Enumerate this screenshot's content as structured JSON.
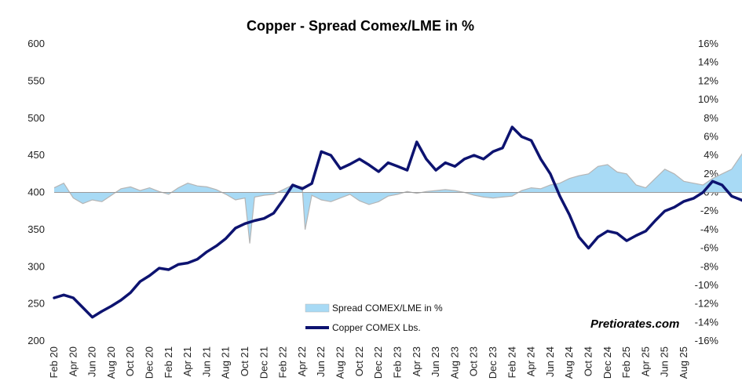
{
  "chart_data": {
    "type": "line",
    "title": "Copper - Spread Comex/LME in %",
    "watermark": "Pretiorates.com",
    "x_tick_labels": [
      "Feb 20",
      "Apr 20",
      "Jun 20",
      "Aug 20",
      "Oct 20",
      "Dec 20",
      "Feb 21",
      "Apr 21",
      "Jun 21",
      "Aug 21",
      "Oct 21",
      "Dec 21",
      "Feb 22",
      "Apr 22",
      "Jun 22",
      "Aug 22",
      "Oct 22",
      "Dec 22",
      "Feb 23",
      "Apr 23",
      "Jun 23",
      "Aug 23",
      "Oct 23",
      "Dec 23",
      "Feb 24",
      "Apr 24",
      "Jun 24",
      "Aug 24",
      "Oct 24",
      "Dec 24",
      "Feb 25",
      "Apr 25",
      "Jun 25",
      "Aug 25"
    ],
    "y_left": {
      "ticks": [
        200,
        250,
        300,
        350,
        400,
        450,
        500,
        550,
        600
      ],
      "ylim": [
        200,
        600
      ],
      "label": ""
    },
    "y_right": {
      "ticks": [
        "-16%",
        "-14%",
        "-12%",
        "-10%",
        "-8%",
        "-6%",
        "-4%",
        "-2%",
        "0%",
        "2%",
        "4%",
        "6%",
        "8%",
        "10%",
        "12%",
        "14%",
        "16%"
      ],
      "ylim": [
        -16,
        16
      ],
      "label": ""
    },
    "legend": {
      "placement": "bottom-center"
    },
    "series": [
      {
        "name": "Spread COMEX/LME in %",
        "kind": "area",
        "axis": "right",
        "color": "#a8daf5",
        "outline_color": "#b5b5b5",
        "points": [
          [
            0,
            0.5
          ],
          [
            1,
            1.0
          ],
          [
            2,
            -0.6
          ],
          [
            3,
            -1.2
          ],
          [
            4,
            -0.8
          ],
          [
            5,
            -1.0
          ],
          [
            6,
            -0.3
          ],
          [
            7,
            0.4
          ],
          [
            8,
            0.6
          ],
          [
            9,
            0.2
          ],
          [
            10,
            0.5
          ],
          [
            11,
            0.1
          ],
          [
            12,
            -0.2
          ],
          [
            13,
            0.5
          ],
          [
            14,
            1.0
          ],
          [
            15,
            0.7
          ],
          [
            16,
            0.6
          ],
          [
            17,
            0.3
          ],
          [
            18,
            -0.2
          ],
          [
            19,
            -0.8
          ],
          [
            20,
            -0.6
          ],
          [
            20.5,
            -5.5
          ],
          [
            21,
            -0.5
          ],
          [
            22,
            -0.3
          ],
          [
            23,
            -0.2
          ],
          [
            24,
            0.3
          ],
          [
            25,
            0.8
          ],
          [
            26,
            0.6
          ],
          [
            26.3,
            -4.0
          ],
          [
            27,
            -0.3
          ],
          [
            28,
            -0.8
          ],
          [
            29,
            -1.0
          ],
          [
            30,
            -0.6
          ],
          [
            31,
            -0.2
          ],
          [
            32,
            -0.9
          ],
          [
            33,
            -1.3
          ],
          [
            34,
            -1.0
          ],
          [
            35,
            -0.4
          ],
          [
            36,
            -0.2
          ],
          [
            37,
            0.1
          ],
          [
            38,
            -0.1
          ],
          [
            39,
            0.1
          ],
          [
            40,
            0.2
          ],
          [
            41,
            0.3
          ],
          [
            42,
            0.2
          ],
          [
            43,
            0.0
          ],
          [
            44,
            -0.3
          ],
          [
            45,
            -0.5
          ],
          [
            46,
            -0.6
          ],
          [
            47,
            -0.5
          ],
          [
            48,
            -0.4
          ],
          [
            49,
            0.2
          ],
          [
            50,
            0.5
          ],
          [
            51,
            0.4
          ],
          [
            52,
            0.8
          ],
          [
            53,
            1.0
          ],
          [
            54,
            1.5
          ],
          [
            55,
            1.8
          ],
          [
            56,
            2.0
          ],
          [
            57,
            2.8
          ],
          [
            58,
            3.0
          ],
          [
            59,
            2.2
          ],
          [
            60,
            2.0
          ],
          [
            61,
            0.8
          ],
          [
            62,
            0.5
          ],
          [
            63,
            1.5
          ],
          [
            64,
            2.5
          ],
          [
            65,
            2.0
          ],
          [
            66,
            1.2
          ],
          [
            67,
            1.0
          ],
          [
            68,
            0.8
          ],
          [
            69,
            1.5
          ],
          [
            70,
            2.0
          ],
          [
            71,
            2.5
          ],
          [
            72,
            4.0
          ],
          [
            73,
            5.5
          ],
          [
            74,
            7.0
          ],
          [
            75,
            9.0
          ],
          [
            76,
            11.0
          ],
          [
            77,
            13.0
          ],
          [
            78,
            15.5
          ],
          [
            79,
            14.0
          ],
          [
            80,
            12.0
          ],
          [
            81,
            10.5
          ],
          [
            82,
            9.0
          ],
          [
            83,
            9.5
          ],
          [
            84,
            10.0
          ],
          [
            85,
            9.5
          ],
          [
            86,
            9.0
          ],
          [
            86.5,
            0
          ]
        ]
      },
      {
        "name": "Copper COMEX Lbs.",
        "kind": "line",
        "axis": "left",
        "color": "#0d1370",
        "points": [
          [
            0,
            258
          ],
          [
            1,
            262
          ],
          [
            2,
            258
          ],
          [
            3,
            245
          ],
          [
            4,
            232
          ],
          [
            5,
            240
          ],
          [
            6,
            247
          ],
          [
            7,
            255
          ],
          [
            8,
            265
          ],
          [
            9,
            280
          ],
          [
            10,
            288
          ],
          [
            11,
            298
          ],
          [
            12,
            296
          ],
          [
            13,
            303
          ],
          [
            14,
            305
          ],
          [
            15,
            310
          ],
          [
            16,
            320
          ],
          [
            17,
            328
          ],
          [
            18,
            338
          ],
          [
            19,
            352
          ],
          [
            20,
            358
          ],
          [
            21,
            362
          ],
          [
            22,
            365
          ],
          [
            23,
            372
          ],
          [
            24,
            390
          ],
          [
            25,
            410
          ],
          [
            26,
            405
          ],
          [
            27,
            412
          ],
          [
            28,
            455
          ],
          [
            29,
            450
          ],
          [
            30,
            432
          ],
          [
            31,
            438
          ],
          [
            32,
            445
          ],
          [
            33,
            437
          ],
          [
            34,
            428
          ],
          [
            35,
            440
          ],
          [
            36,
            435
          ],
          [
            37,
            430
          ],
          [
            38,
            468
          ],
          [
            39,
            445
          ],
          [
            40,
            430
          ],
          [
            41,
            440
          ],
          [
            42,
            435
          ],
          [
            43,
            445
          ],
          [
            44,
            450
          ],
          [
            45,
            445
          ],
          [
            46,
            455
          ],
          [
            47,
            460
          ],
          [
            48,
            488
          ],
          [
            49,
            475
          ],
          [
            50,
            470
          ],
          [
            51,
            445
          ],
          [
            52,
            425
          ],
          [
            53,
            395
          ],
          [
            54,
            370
          ],
          [
            55,
            340
          ],
          [
            56,
            325
          ],
          [
            57,
            340
          ],
          [
            58,
            348
          ],
          [
            59,
            345
          ],
          [
            60,
            335
          ],
          [
            61,
            342
          ],
          [
            62,
            348
          ],
          [
            63,
            362
          ],
          [
            64,
            375
          ],
          [
            65,
            380
          ],
          [
            66,
            388
          ],
          [
            67,
            392
          ],
          [
            68,
            400
          ],
          [
            69,
            415
          ],
          [
            70,
            410
          ],
          [
            71,
            395
          ],
          [
            72,
            390
          ],
          [
            73,
            384
          ],
          [
            74,
            375
          ],
          [
            75,
            370
          ],
          [
            76,
            375
          ],
          [
            77,
            380
          ],
          [
            78,
            380
          ],
          [
            79,
            383
          ],
          [
            80,
            376
          ],
          [
            81,
            370
          ],
          [
            82,
            370
          ],
          [
            83,
            365
          ],
          [
            84,
            362
          ],
          [
            85,
            372
          ],
          [
            86,
            375
          ]
        ]
      }
    ]
  }
}
